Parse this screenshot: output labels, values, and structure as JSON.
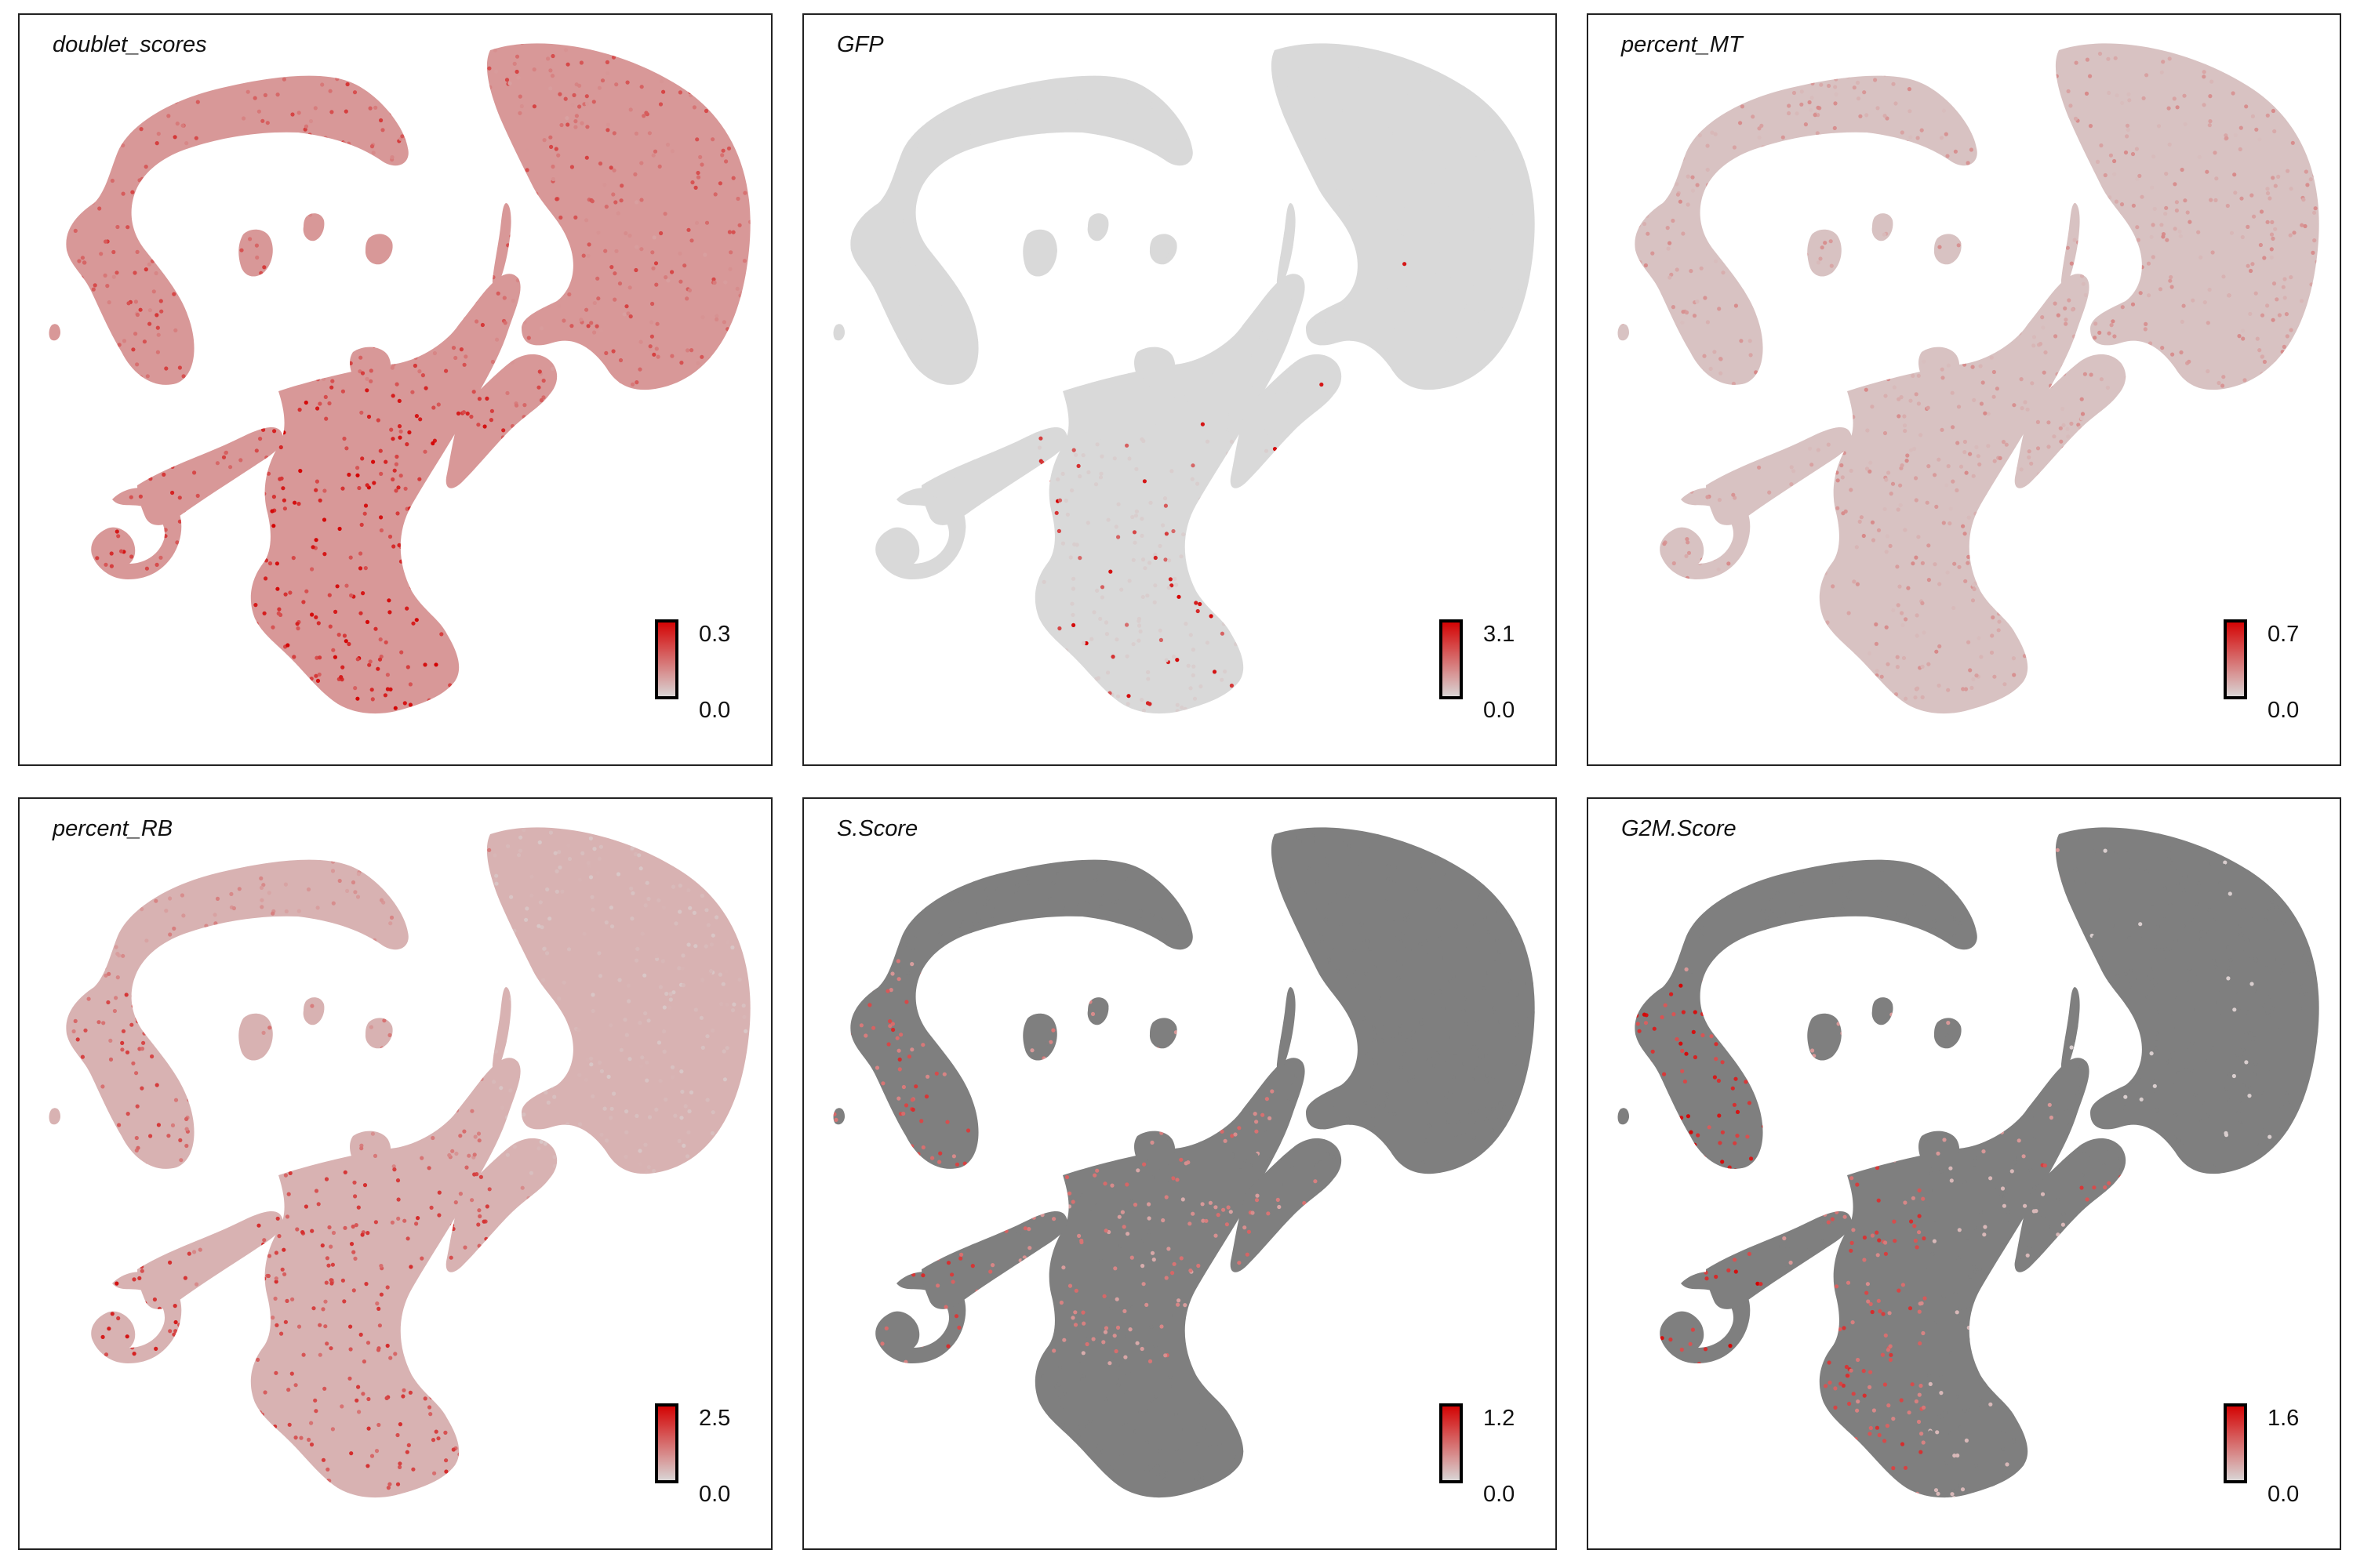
{
  "figure": {
    "title": "",
    "plot_type": "UMAP feature plots, 2 x 3 grid"
  },
  "colors": {
    "low": "#d9d9d9",
    "high": "#d40000",
    "other_gray": "#7f7f7f"
  },
  "panels": [
    {
      "title": "doublet_scores",
      "scale_max": "0.3",
      "scale_min": "0.0",
      "scale_low": "#d9d9d9",
      "scale_high": "#d40000",
      "pattern": "doublet",
      "base_intensity": 0.5,
      "point_color_gray": "#d9d9d9"
    },
    {
      "title": "GFP",
      "scale_max": "3.1",
      "scale_min": "0.0",
      "scale_low": "#d9d9d9",
      "scale_high": "#d40000",
      "pattern": "gfp",
      "base_intensity": 0.0,
      "point_color_gray": "#d9d9d9"
    },
    {
      "title": "percent_MT",
      "scale_max": "0.7",
      "scale_min": "0.0",
      "scale_low": "#d9d9d9",
      "scale_high": "#d40000",
      "pattern": "mt",
      "base_intensity": 0.18,
      "point_color_gray": "#d9d9d9"
    },
    {
      "title": "percent_RB",
      "scale_max": "2.5",
      "scale_min": "0.0",
      "scale_low": "#d9d9d9",
      "scale_high": "#d40000",
      "pattern": "rb",
      "base_intensity": 0.3,
      "point_color_gray": "#d9d9d9"
    },
    {
      "title": "S.Score",
      "scale_max": "1.2",
      "scale_min": "0.0",
      "scale_low": "#d9d9d9",
      "scale_high": "#d40000",
      "pattern": "sscore",
      "base_intensity": 0.0,
      "point_color_gray": "#7f7f7f"
    },
    {
      "title": "G2M.Score",
      "scale_max": "1.6",
      "scale_min": "0.0",
      "scale_low": "#d9d9d9",
      "scale_high": "#d40000",
      "pattern": "g2m",
      "base_intensity": 0.0,
      "point_color_gray": "#7f7f7f"
    }
  ],
  "chart_data": [
    {
      "type": "scatter",
      "title": "doublet_scores",
      "xlabel": "",
      "ylabel": "",
      "color_scale": {
        "min": 0.0,
        "max": 0.3
      },
      "legend": "bottom-right"
    },
    {
      "type": "scatter",
      "title": "GFP",
      "xlabel": "",
      "ylabel": "",
      "color_scale": {
        "min": 0.0,
        "max": 3.1
      },
      "legend": "bottom-right"
    },
    {
      "type": "scatter",
      "title": "percent_MT",
      "xlabel": "",
      "ylabel": "",
      "color_scale": {
        "min": 0.0,
        "max": 0.7
      },
      "legend": "bottom-right"
    },
    {
      "type": "scatter",
      "title": "percent_RB",
      "xlabel": "",
      "ylabel": "",
      "color_scale": {
        "min": 0.0,
        "max": 2.5
      },
      "legend": "bottom-right"
    },
    {
      "type": "scatter",
      "title": "S.Score",
      "xlabel": "",
      "ylabel": "",
      "color_scale": {
        "min": 0.0,
        "max": 1.2
      },
      "legend": "bottom-right"
    },
    {
      "type": "scatter",
      "title": "G2M.Score",
      "xlabel": "",
      "ylabel": "",
      "color_scale": {
        "min": 0.0,
        "max": 1.6
      },
      "legend": "bottom-right"
    }
  ]
}
